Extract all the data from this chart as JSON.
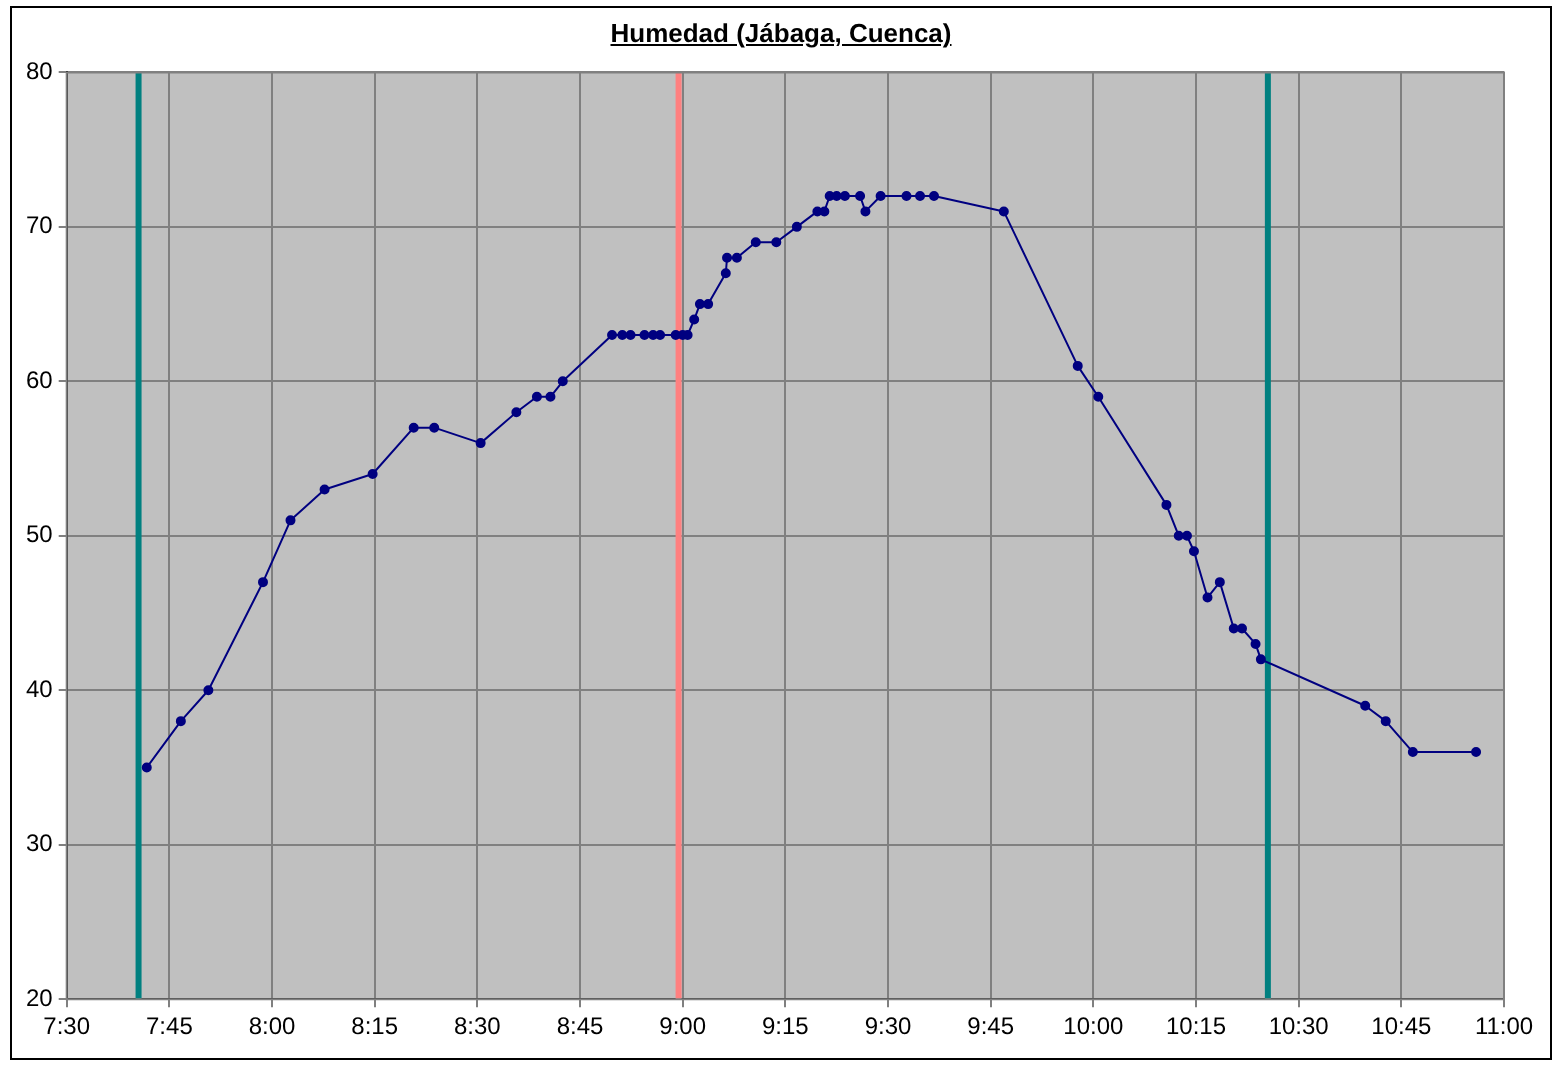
{
  "chart_data": {
    "type": "line",
    "title": "Humedad (Jábaga, Cuenca)",
    "x": [
      7.695,
      7.778,
      7.845,
      7.978,
      8.045,
      8.128,
      8.245,
      8.345,
      8.395,
      8.508,
      8.595,
      8.645,
      8.678,
      8.708,
      8.828,
      8.853,
      8.873,
      8.907,
      8.928,
      8.945,
      8.983,
      9.0,
      9.012,
      9.028,
      9.042,
      9.062,
      9.105,
      9.108,
      9.132,
      9.178,
      9.228,
      9.278,
      9.328,
      9.345,
      9.358,
      9.375,
      9.395,
      9.432,
      9.445,
      9.482,
      9.545,
      9.578,
      9.612,
      9.782,
      9.962,
      10.012,
      10.178,
      10.208,
      10.228,
      10.245,
      10.278,
      10.308,
      10.342,
      10.362,
      10.395,
      10.408,
      10.662,
      10.712,
      10.778,
      10.932
    ],
    "series": [
      {
        "color": "#000080",
        "values": [
          35,
          38,
          40,
          47,
          51,
          53,
          54,
          57,
          57,
          56,
          58,
          59,
          59,
          60,
          63,
          63,
          63,
          63,
          63,
          63,
          63,
          63,
          63,
          64,
          65,
          65,
          67,
          68,
          68,
          69,
          69,
          70,
          71,
          71,
          72,
          72,
          72,
          72,
          71,
          72,
          72,
          72,
          72,
          71,
          61,
          59,
          52,
          50,
          50,
          49,
          46,
          47,
          44,
          44,
          43,
          42,
          39,
          38,
          36,
          36
        ]
      }
    ],
    "xlim": [
      7.5,
      11
    ],
    "xticks": [
      {
        "value": 7.5,
        "label": "7:30"
      },
      {
        "value": 7.75,
        "label": "7:45"
      },
      {
        "value": 8,
        "label": "8:00"
      },
      {
        "value": 8.25,
        "label": "8:15"
      },
      {
        "value": 8.5,
        "label": "8:30"
      },
      {
        "value": 8.75,
        "label": "8:45"
      },
      {
        "value": 9,
        "label": "9:00"
      },
      {
        "value": 9.25,
        "label": "9:15"
      },
      {
        "value": 9.5,
        "label": "9:30"
      },
      {
        "value": 9.75,
        "label": "9:45"
      },
      {
        "value": 10,
        "label": "10:00"
      },
      {
        "value": 10.25,
        "label": "10:15"
      },
      {
        "value": 10.5,
        "label": "10:30"
      },
      {
        "value": 10.75,
        "label": "10:45"
      },
      {
        "value": 11,
        "label": "11:00"
      }
    ],
    "ylim": [
      20,
      80
    ],
    "yticks": [
      20,
      30,
      40,
      50,
      60,
      70,
      80
    ],
    "ref_lines": [
      {
        "axis": "x",
        "value": 7.675,
        "color": "#008080"
      },
      {
        "axis": "x",
        "value": 8.99,
        "color": "#ff8080"
      },
      {
        "axis": "x",
        "value": 10.425,
        "color": "#008080"
      }
    ],
    "grid": true,
    "marker": "circle",
    "line_style": "solid"
  }
}
